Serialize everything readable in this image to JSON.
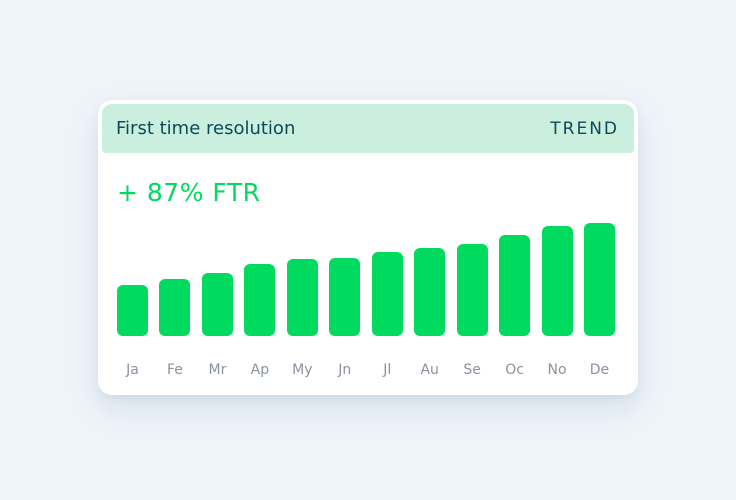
{
  "card": {
    "title": "First time resolution",
    "trend_label": "TREND",
    "metric": "+ 87% FTR"
  },
  "chart_data": {
    "type": "bar",
    "title": "First time resolution",
    "annotation": "+ 87% FTR",
    "categories": [
      "Ja",
      "Fe",
      "Mr",
      "Ap",
      "My",
      "Jn",
      "Jl",
      "Au",
      "Se",
      "Oc",
      "No",
      "De"
    ],
    "values": [
      45,
      50,
      56,
      64,
      68,
      69,
      74,
      78,
      81,
      89,
      97,
      100
    ],
    "xlabel": "",
    "ylabel": "",
    "ylim": [
      0,
      100
    ],
    "grid": false,
    "legend": false,
    "bar_color": "#00da5e"
  },
  "colors": {
    "page_bg": "#eff4f9",
    "card_bg": "#ffffff",
    "header_bg": "#caefdf",
    "header_text": "#0d4a57",
    "accent_green": "#00da5e",
    "axis_label": "#8a93a1"
  }
}
